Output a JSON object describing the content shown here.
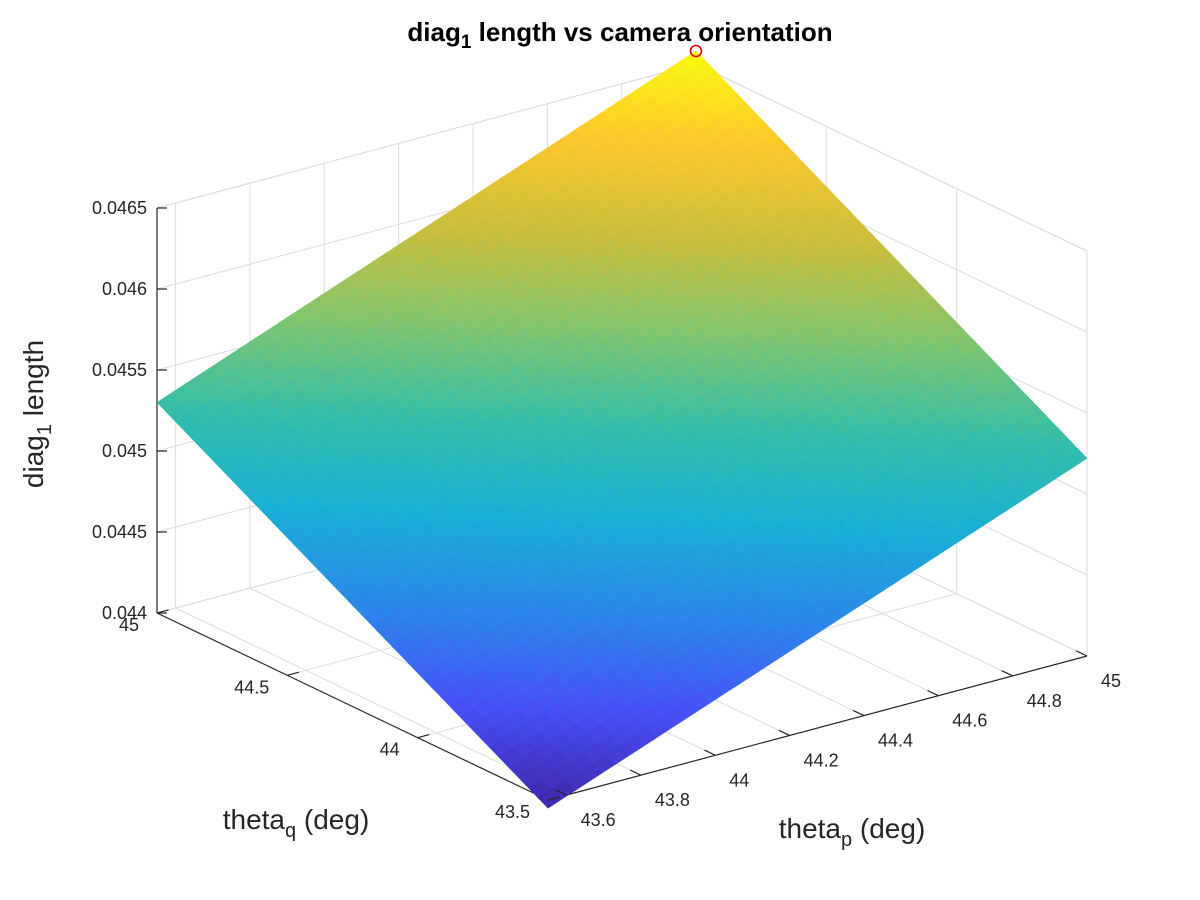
{
  "chart_data": {
    "type": "surface",
    "title": {
      "main": "diag",
      "sub": "1",
      "rest": " length vs camera orientation"
    },
    "xlabel": {
      "main": "theta",
      "sub": "p",
      "rest": " (deg)"
    },
    "ylabel": {
      "main": "theta",
      "sub": "q",
      "rest": " (deg)"
    },
    "zlabel": {
      "main": "diag",
      "sub": "1",
      "rest": " length"
    },
    "xlim": [
      43.55,
      45
    ],
    "ylim": [
      43.5,
      45
    ],
    "zlim": [
      0.044,
      0.0465
    ],
    "x_ticks": [
      43.6,
      43.8,
      44,
      44.2,
      44.4,
      44.6,
      44.8,
      45
    ],
    "x_tick_labels": [
      "43.6",
      "43.8",
      "44",
      "44.2",
      "44.4",
      "44.6",
      "44.8",
      "45"
    ],
    "y_ticks": [
      43.5,
      44,
      44.5,
      45
    ],
    "y_tick_labels": [
      "43.5",
      "44",
      "44.5",
      "45"
    ],
    "z_ticks": [
      0.044,
      0.0445,
      0.045,
      0.0455,
      0.046,
      0.0465
    ],
    "z_tick_labels": [
      "0.044",
      "0.0445",
      "0.045",
      "0.0455",
      "0.046",
      "0.0465"
    ],
    "grid": true,
    "colormap": "parula",
    "surface_corners": [
      {
        "x": 43.55,
        "y": 43.5,
        "z": 0.04395
      },
      {
        "x": 45.0,
        "y": 43.5,
        "z": 0.04522
      },
      {
        "x": 45.0,
        "y": 45.0,
        "z": 0.04658
      },
      {
        "x": 43.55,
        "y": 45.0,
        "z": 0.0453
      }
    ],
    "marker": {
      "x": 45.0,
      "y": 45.0,
      "z": 0.04658,
      "style": "circle",
      "color": "#e00000"
    }
  }
}
